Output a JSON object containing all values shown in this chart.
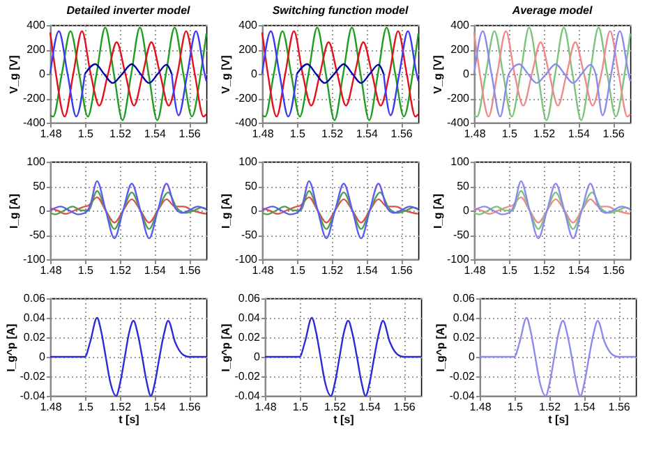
{
  "chart_data": [
    {
      "type": "line",
      "title": "Detailed inverter model",
      "ylabel": "V_g [V]",
      "xlim": [
        1.48,
        1.57
      ],
      "xticks": [
        1.48,
        1.5,
        1.52,
        1.54,
        1.56
      ],
      "ylim": [
        -400,
        400
      ],
      "yticks": [
        -400,
        -200,
        0,
        200,
        400
      ],
      "grid": true,
      "series": [
        {
          "color": "#1e9e1e",
          "x": [
            1.48,
            1.4817,
            1.4867,
            1.4917,
            1.4967,
            1.5017,
            1.5067,
            1.5117,
            1.5167,
            1.5217,
            1.5267,
            1.5317,
            1.5367,
            1.5417,
            1.5467,
            1.5517,
            1.5567,
            1.5617,
            1.5667,
            1.57
          ],
          "values": [
            -340,
            -350,
            0,
            350,
            0,
            -350,
            0,
            380,
            0,
            -380,
            0,
            380,
            0,
            -380,
            0,
            380,
            0,
            -350,
            0,
            330
          ]
        },
        {
          "color": "#e3101e",
          "x": [
            1.48,
            1.4833,
            1.4883,
            1.4933,
            1.4983,
            1.5033,
            1.5083,
            1.5133,
            1.5183,
            1.5233,
            1.5283,
            1.5333,
            1.5383,
            1.5433,
            1.5483,
            1.5533,
            1.5583,
            1.5633,
            1.5683,
            1.57
          ],
          "values": [
            340,
            0,
            -350,
            0,
            350,
            0,
            -260,
            0,
            260,
            0,
            -260,
            0,
            260,
            0,
            -260,
            0,
            350,
            0,
            -350,
            -330
          ]
        },
        {
          "color": "#3a3af0",
          "x": [
            1.48,
            1.485,
            1.49,
            1.495,
            1.5,
            1.525,
            1.55,
            1.554,
            1.559,
            1.564,
            1.569,
            1.57
          ],
          "values": [
            0,
            350,
            0,
            -350,
            0,
            null,
            0,
            -340,
            0,
            350,
            0,
            -60
          ]
        },
        {
          "color": "#0000a8",
          "x": [
            1.5,
            1.506,
            1.511,
            1.516,
            1.5215,
            1.527,
            1.532,
            1.537,
            1.542,
            1.547,
            1.55
          ],
          "values": [
            0,
            80,
            0,
            -75,
            0,
            80,
            0,
            -75,
            0,
            75,
            0
          ]
        }
      ]
    },
    {
      "type": "line",
      "title": "Switching function model",
      "ylabel": "V_g [V]",
      "xlim": [
        1.48,
        1.57
      ],
      "xticks": [
        1.48,
        1.5,
        1.52,
        1.54,
        1.56
      ],
      "ylim": [
        -400,
        400
      ],
      "yticks": [
        -400,
        -200,
        0,
        200,
        400
      ],
      "grid": true,
      "series": [
        {
          "color": "#1e9e1e",
          "x": [
            1.48,
            1.4817,
            1.4867,
            1.4917,
            1.4967,
            1.5017,
            1.5067,
            1.5117,
            1.5167,
            1.5217,
            1.5267,
            1.5317,
            1.5367,
            1.5417,
            1.5467,
            1.5517,
            1.5567,
            1.5617,
            1.5667,
            1.57
          ],
          "values": [
            -340,
            -350,
            0,
            350,
            0,
            -350,
            0,
            380,
            0,
            -380,
            0,
            380,
            0,
            -380,
            0,
            380,
            0,
            -350,
            0,
            330
          ]
        },
        {
          "color": "#e3101e",
          "x": [
            1.48,
            1.4833,
            1.4883,
            1.4933,
            1.4983,
            1.5033,
            1.5083,
            1.5133,
            1.5183,
            1.5233,
            1.5283,
            1.5333,
            1.5383,
            1.5433,
            1.5483,
            1.5533,
            1.5583,
            1.5633,
            1.5683,
            1.57
          ],
          "values": [
            340,
            0,
            -350,
            0,
            350,
            0,
            -260,
            0,
            260,
            0,
            -260,
            0,
            260,
            0,
            -260,
            0,
            350,
            0,
            -350,
            -330
          ]
        },
        {
          "color": "#3a3af0",
          "x": [
            1.48,
            1.485,
            1.49,
            1.495,
            1.5,
            1.525,
            1.55,
            1.554,
            1.559,
            1.564,
            1.569,
            1.57
          ],
          "values": [
            0,
            350,
            0,
            -350,
            0,
            null,
            0,
            -340,
            0,
            350,
            0,
            -60
          ]
        },
        {
          "color": "#0000a8",
          "x": [
            1.5,
            1.506,
            1.511,
            1.516,
            1.5215,
            1.527,
            1.532,
            1.537,
            1.542,
            1.547,
            1.55
          ],
          "values": [
            0,
            80,
            0,
            -75,
            0,
            80,
            0,
            -75,
            0,
            75,
            0
          ]
        }
      ]
    },
    {
      "type": "line",
      "title": "Average model",
      "ylabel": "V_g [V]",
      "xlim": [
        1.48,
        1.57
      ],
      "xticks": [
        1.48,
        1.5,
        1.52,
        1.54,
        1.56
      ],
      "ylim": [
        -400,
        400
      ],
      "yticks": [
        -400,
        -200,
        0,
        200,
        400
      ],
      "grid": true,
      "series": [
        {
          "color": "#7cc47c",
          "x": [
            1.48,
            1.4817,
            1.4867,
            1.4917,
            1.4967,
            1.5017,
            1.5067,
            1.5117,
            1.5167,
            1.5217,
            1.5267,
            1.5317,
            1.5367,
            1.5417,
            1.5467,
            1.5517,
            1.5567,
            1.5617,
            1.5667,
            1.57
          ],
          "values": [
            -340,
            -350,
            0,
            350,
            0,
            -350,
            0,
            380,
            0,
            -380,
            0,
            380,
            0,
            -380,
            0,
            380,
            0,
            -350,
            0,
            330
          ]
        },
        {
          "color": "#f08a8a",
          "x": [
            1.48,
            1.4833,
            1.4883,
            1.4933,
            1.4983,
            1.5033,
            1.5083,
            1.5133,
            1.5183,
            1.5233,
            1.5283,
            1.5333,
            1.5383,
            1.5433,
            1.5483,
            1.5533,
            1.5583,
            1.5633,
            1.5683,
            1.57
          ],
          "values": [
            340,
            0,
            -350,
            0,
            350,
            0,
            -260,
            0,
            260,
            0,
            -260,
            0,
            260,
            0,
            -260,
            0,
            350,
            0,
            -350,
            -330
          ]
        },
        {
          "color": "#8a8af0",
          "x": [
            1.48,
            1.485,
            1.49,
            1.495,
            1.5,
            1.506,
            1.511,
            1.516,
            1.5215,
            1.527,
            1.532,
            1.537,
            1.542,
            1.547,
            1.55,
            1.554,
            1.559,
            1.564,
            1.569,
            1.57
          ],
          "values": [
            0,
            350,
            0,
            -350,
            0,
            80,
            0,
            -75,
            0,
            80,
            0,
            -75,
            0,
            75,
            0,
            -340,
            0,
            350,
            0,
            -60
          ]
        }
      ]
    },
    {
      "type": "line",
      "ylabel": "I_g [A]",
      "xlim": [
        1.48,
        1.57
      ],
      "xticks": [
        1.48,
        1.5,
        1.52,
        1.54,
        1.56
      ],
      "ylim": [
        -100,
        100
      ],
      "yticks": [
        -100,
        -50,
        0,
        50,
        100
      ],
      "grid": true,
      "series": [
        {
          "color": "#e05050",
          "x": [
            1.48,
            1.484,
            1.489,
            1.494,
            1.499,
            1.502,
            1.507,
            1.512,
            1.517,
            1.522,
            1.527,
            1.532,
            1.537,
            1.542,
            1.547,
            1.552,
            1.557,
            1.562,
            1.567,
            1.57
          ],
          "values": [
            5,
            0,
            -7,
            0,
            7,
            10,
            27,
            0,
            -25,
            0,
            23,
            0,
            -25,
            0,
            23,
            8,
            8,
            0,
            -5,
            -7
          ]
        },
        {
          "color": "#4ea04e",
          "x": [
            1.48,
            1.483,
            1.488,
            1.493,
            1.498,
            1.502,
            1.507,
            1.512,
            1.517,
            1.522,
            1.527,
            1.532,
            1.537,
            1.542,
            1.548,
            1.553,
            1.558,
            1.563,
            1.567,
            1.57
          ],
          "values": [
            -5,
            -8,
            0,
            8,
            0,
            0,
            40,
            0,
            -38,
            0,
            37,
            0,
            -38,
            0,
            37,
            5,
            -5,
            0,
            6,
            3
          ]
        },
        {
          "color": "#5c5cf0",
          "x": [
            1.48,
            1.486,
            1.491,
            1.496,
            1.5,
            1.503,
            1.507,
            1.512,
            1.517,
            1.522,
            1.527,
            1.532,
            1.537,
            1.542,
            1.547,
            1.552,
            1.556,
            1.56,
            1.565,
            1.57
          ],
          "values": [
            0,
            8,
            0,
            -8,
            -5,
            10,
            60,
            0,
            -57,
            0,
            55,
            0,
            -57,
            0,
            55,
            5,
            -5,
            0,
            8,
            2
          ]
        }
      ]
    },
    {
      "type": "line",
      "ylabel": "I_g [A]",
      "xlim": [
        1.48,
        1.57
      ],
      "xticks": [
        1.48,
        1.5,
        1.52,
        1.54,
        1.56
      ],
      "ylim": [
        -100,
        100
      ],
      "yticks": [
        -100,
        -50,
        0,
        50,
        100
      ],
      "grid": true,
      "series": [
        {
          "color": "#e05050",
          "x": [
            1.48,
            1.484,
            1.489,
            1.494,
            1.499,
            1.502,
            1.507,
            1.512,
            1.517,
            1.522,
            1.527,
            1.532,
            1.537,
            1.542,
            1.547,
            1.552,
            1.557,
            1.562,
            1.567,
            1.57
          ],
          "values": [
            5,
            0,
            -7,
            0,
            7,
            10,
            27,
            0,
            -25,
            0,
            23,
            0,
            -25,
            0,
            23,
            8,
            8,
            0,
            -5,
            -7
          ]
        },
        {
          "color": "#4ea04e",
          "x": [
            1.48,
            1.483,
            1.488,
            1.493,
            1.498,
            1.502,
            1.507,
            1.512,
            1.517,
            1.522,
            1.527,
            1.532,
            1.537,
            1.542,
            1.548,
            1.553,
            1.558,
            1.563,
            1.567,
            1.57
          ],
          "values": [
            -5,
            -8,
            0,
            8,
            0,
            0,
            40,
            0,
            -38,
            0,
            37,
            0,
            -38,
            0,
            37,
            5,
            -5,
            0,
            6,
            3
          ]
        },
        {
          "color": "#5c5cf0",
          "x": [
            1.48,
            1.486,
            1.491,
            1.496,
            1.5,
            1.503,
            1.507,
            1.512,
            1.517,
            1.522,
            1.527,
            1.532,
            1.537,
            1.542,
            1.547,
            1.552,
            1.556,
            1.56,
            1.565,
            1.57
          ],
          "values": [
            0,
            8,
            0,
            -8,
            -5,
            10,
            60,
            0,
            -57,
            0,
            55,
            0,
            -57,
            0,
            55,
            5,
            -5,
            0,
            8,
            2
          ]
        }
      ]
    },
    {
      "type": "line",
      "ylabel": "I_g [A]",
      "xlim": [
        1.48,
        1.57
      ],
      "xticks": [
        1.48,
        1.5,
        1.52,
        1.54,
        1.56
      ],
      "ylim": [
        -100,
        100
      ],
      "yticks": [
        -100,
        -50,
        0,
        50,
        100
      ],
      "grid": true,
      "series": [
        {
          "color": "#f08a8a",
          "x": [
            1.48,
            1.484,
            1.489,
            1.494,
            1.499,
            1.502,
            1.507,
            1.512,
            1.517,
            1.522,
            1.527,
            1.532,
            1.537,
            1.542,
            1.547,
            1.552,
            1.557,
            1.562,
            1.567,
            1.57
          ],
          "values": [
            5,
            0,
            -7,
            0,
            7,
            10,
            27,
            0,
            -25,
            0,
            23,
            0,
            -25,
            0,
            23,
            8,
            8,
            0,
            -5,
            -7
          ]
        },
        {
          "color": "#7cc47c",
          "x": [
            1.48,
            1.483,
            1.488,
            1.493,
            1.498,
            1.502,
            1.507,
            1.512,
            1.517,
            1.522,
            1.527,
            1.532,
            1.537,
            1.542,
            1.548,
            1.553,
            1.558,
            1.563,
            1.567,
            1.57
          ],
          "values": [
            -5,
            -8,
            0,
            8,
            0,
            0,
            40,
            0,
            -38,
            0,
            37,
            0,
            -38,
            0,
            37,
            5,
            -5,
            0,
            6,
            3
          ]
        },
        {
          "color": "#8a8af0",
          "x": [
            1.48,
            1.486,
            1.491,
            1.496,
            1.5,
            1.503,
            1.507,
            1.512,
            1.517,
            1.522,
            1.527,
            1.532,
            1.537,
            1.542,
            1.547,
            1.552,
            1.556,
            1.56,
            1.565,
            1.57
          ],
          "values": [
            0,
            8,
            0,
            -8,
            -5,
            10,
            60,
            0,
            -57,
            0,
            55,
            0,
            -57,
            0,
            55,
            5,
            -5,
            0,
            8,
            2
          ]
        }
      ]
    },
    {
      "type": "line",
      "xlabel": "t [s]",
      "ylabel": "I_g^p [A]",
      "xlim": [
        1.48,
        1.57
      ],
      "xticks": [
        1.48,
        1.5,
        1.52,
        1.54,
        1.56
      ],
      "ylim": [
        -0.04,
        0.06
      ],
      "yticks": [
        -0.04,
        -0.02,
        0,
        0.02,
        0.04,
        0.06
      ],
      "grid": true,
      "series": [
        {
          "color": "#2a2ad8",
          "x": [
            1.48,
            1.49,
            1.5,
            1.503,
            1.507,
            1.5095,
            1.512,
            1.5145,
            1.518,
            1.5205,
            1.523,
            1.5255,
            1.528,
            1.5305,
            1.533,
            1.5355,
            1.538,
            1.5405,
            1.543,
            1.5455,
            1.548,
            1.552,
            1.556,
            1.56,
            1.57
          ],
          "values": [
            0,
            0,
            0,
            0.015,
            0.04,
            0.025,
            0,
            -0.025,
            -0.04,
            -0.025,
            0,
            0.025,
            0.037,
            0.023,
            0,
            -0.025,
            -0.04,
            -0.025,
            0,
            0.023,
            0.037,
            0.015,
            0.003,
            0,
            0
          ]
        }
      ]
    },
    {
      "type": "line",
      "xlabel": "t [s]",
      "ylabel": "I_g^p [A]",
      "xlim": [
        1.48,
        1.57
      ],
      "xticks": [
        1.48,
        1.5,
        1.52,
        1.54,
        1.56
      ],
      "ylim": [
        -0.04,
        0.06
      ],
      "yticks": [
        -0.04,
        -0.02,
        0,
        0.02,
        0.04,
        0.06
      ],
      "grid": true,
      "series": [
        {
          "color": "#2a2ad8",
          "x": [
            1.48,
            1.49,
            1.5,
            1.503,
            1.507,
            1.5095,
            1.512,
            1.5145,
            1.518,
            1.5205,
            1.523,
            1.5255,
            1.528,
            1.5305,
            1.533,
            1.5355,
            1.538,
            1.5405,
            1.543,
            1.5455,
            1.548,
            1.552,
            1.556,
            1.56,
            1.57
          ],
          "values": [
            0,
            0,
            0,
            0.015,
            0.04,
            0.025,
            0,
            -0.025,
            -0.04,
            -0.025,
            0,
            0.025,
            0.037,
            0.023,
            0,
            -0.025,
            -0.04,
            -0.025,
            0,
            0.023,
            0.037,
            0.015,
            0.003,
            0,
            0
          ]
        }
      ]
    },
    {
      "type": "line",
      "xlabel": "t [s]",
      "ylabel": "I_g^p [A]",
      "xlim": [
        1.48,
        1.57
      ],
      "xticks": [
        1.48,
        1.5,
        1.52,
        1.54,
        1.56
      ],
      "ylim": [
        -0.04,
        0.06
      ],
      "yticks": [
        -0.04,
        -0.02,
        0,
        0.02,
        0.04,
        0.06
      ],
      "grid": true,
      "series": [
        {
          "color": "#8a8af0",
          "x": [
            1.48,
            1.49,
            1.5,
            1.503,
            1.507,
            1.5095,
            1.512,
            1.5145,
            1.518,
            1.5205,
            1.523,
            1.5255,
            1.528,
            1.5305,
            1.533,
            1.5355,
            1.538,
            1.5405,
            1.543,
            1.5455,
            1.548,
            1.552,
            1.556,
            1.56,
            1.57
          ],
          "values": [
            0,
            0,
            0,
            0.015,
            0.04,
            0.025,
            0,
            -0.025,
            -0.04,
            -0.025,
            0,
            0.025,
            0.037,
            0.023,
            0,
            -0.025,
            -0.04,
            -0.025,
            0,
            0.023,
            0.037,
            0.015,
            0.003,
            0,
            0
          ]
        }
      ]
    }
  ]
}
